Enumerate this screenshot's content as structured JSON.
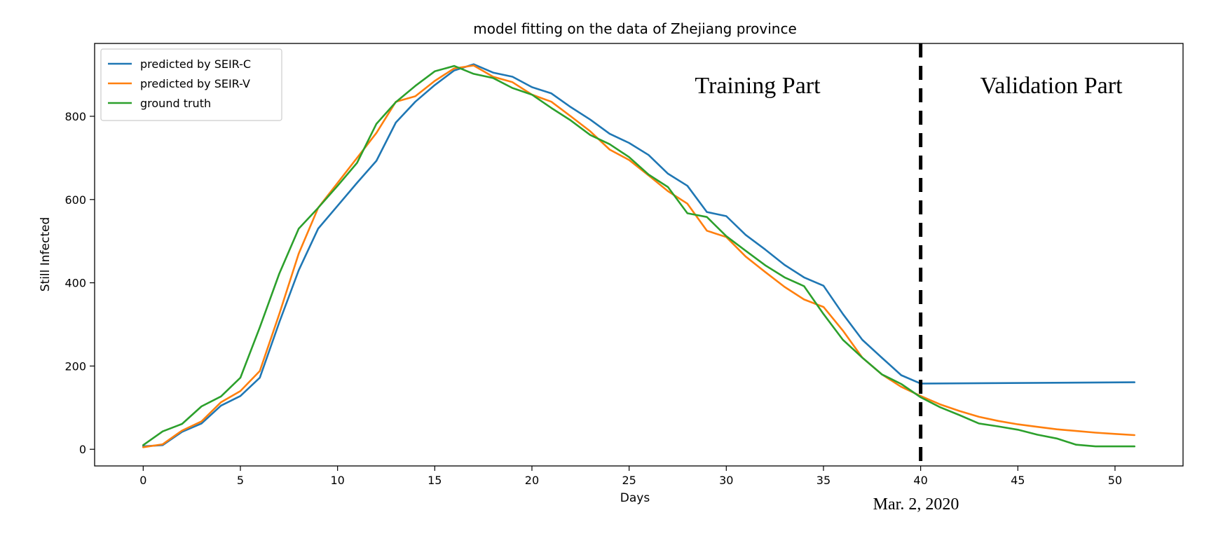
{
  "chart_data": {
    "type": "line",
    "title": "model fitting on the data of Zhejiang province",
    "xlabel": "Days",
    "ylabel": "Still Infected",
    "xlim": [
      -2.5,
      53.5
    ],
    "ylim": [
      -40,
      975
    ],
    "xticks": [
      0,
      5,
      10,
      15,
      20,
      25,
      30,
      35,
      40,
      45,
      50
    ],
    "yticks": [
      0,
      200,
      400,
      600,
      800
    ],
    "grid": false,
    "legend_position": "top-left",
    "colors": {
      "seir_c": "#1f77b4",
      "seir_v": "#ff7f0e",
      "ground_truth": "#2ca02c",
      "divider": "#000000"
    },
    "series": [
      {
        "name": "predicted by SEIR-C",
        "color": "#1f77b4",
        "x": [
          0,
          1,
          2,
          3,
          4,
          5,
          6,
          7,
          8,
          9,
          10,
          11,
          12,
          13,
          14,
          15,
          16,
          17,
          18,
          19,
          20,
          21,
          22,
          23,
          24,
          25,
          26,
          27,
          28,
          29,
          30,
          31,
          32,
          33,
          34,
          35,
          36,
          37,
          38,
          39,
          40,
          51
        ],
        "values": [
          7,
          10,
          42,
          62,
          105,
          128,
          172,
          305,
          430,
          530,
          585,
          640,
          693,
          785,
          835,
          875,
          910,
          925,
          905,
          895,
          870,
          855,
          822,
          792,
          758,
          736,
          707,
          662,
          633,
          570,
          560,
          515,
          480,
          443,
          413,
          393,
          325,
          263,
          220,
          178,
          158,
          161
        ]
      },
      {
        "name": "predicted by SEIR-V",
        "color": "#ff7f0e",
        "x": [
          0,
          1,
          2,
          3,
          4,
          5,
          6,
          7,
          8,
          9,
          10,
          11,
          12,
          13,
          14,
          15,
          16,
          17,
          18,
          19,
          20,
          21,
          22,
          23,
          24,
          25,
          26,
          27,
          28,
          29,
          30,
          31,
          32,
          33,
          34,
          35,
          36,
          37,
          38,
          39,
          40,
          41,
          42,
          43,
          44,
          45,
          46,
          47,
          48,
          49,
          50,
          51
        ],
        "values": [
          5,
          12,
          45,
          67,
          113,
          140,
          188,
          325,
          470,
          580,
          640,
          700,
          760,
          835,
          848,
          885,
          915,
          922,
          895,
          882,
          852,
          835,
          800,
          764,
          720,
          695,
          658,
          620,
          590,
          525,
          510,
          463,
          426,
          390,
          360,
          342,
          285,
          220,
          180,
          150,
          128,
          108,
          92,
          78,
          68,
          60,
          54,
          48,
          44,
          40,
          37,
          34
        ]
      },
      {
        "name": "ground truth",
        "color": "#2ca02c",
        "x": [
          0,
          1,
          2,
          3,
          4,
          5,
          6,
          7,
          8,
          9,
          10,
          11,
          12,
          13,
          14,
          15,
          16,
          17,
          18,
          19,
          20,
          21,
          22,
          23,
          24,
          25,
          26,
          27,
          28,
          29,
          30,
          31,
          32,
          33,
          34,
          35,
          36,
          37,
          38,
          39,
          40,
          41,
          42,
          43,
          44,
          45,
          46,
          47,
          48,
          49,
          50,
          51
        ],
        "values": [
          10,
          43,
          61,
          103,
          127,
          172,
          293,
          422,
          530,
          580,
          633,
          688,
          782,
          834,
          873,
          908,
          921,
          902,
          892,
          868,
          852,
          820,
          790,
          755,
          733,
          702,
          660,
          630,
          567,
          558,
          512,
          477,
          442,
          413,
          392,
          325,
          263,
          220,
          180,
          157,
          125,
          101,
          82,
          62,
          55,
          47,
          35,
          26,
          11,
          7,
          7,
          7
        ]
      }
    ],
    "divider": {
      "x": 40,
      "style": "dashed"
    },
    "annotations": {
      "training": "Training Part",
      "validation": "Validation Part",
      "date": "Mar. 2, 2020"
    }
  }
}
